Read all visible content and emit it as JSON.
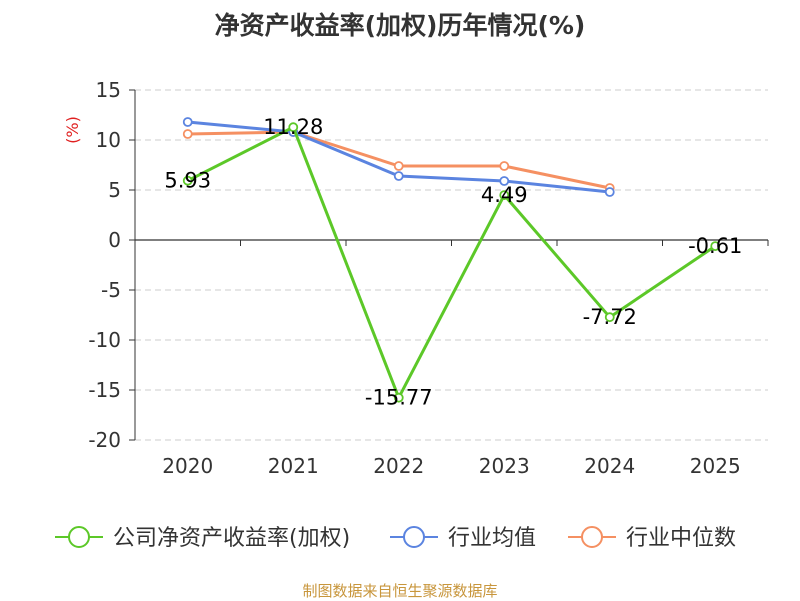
{
  "chart_data": {
    "type": "line",
    "title": "净资产收益率(加权)历年情况(%)",
    "ylabel": "(%)",
    "xlabel": "",
    "categories": [
      "2020",
      "2021",
      "2022",
      "2023",
      "2024",
      "2025"
    ],
    "ylim": [
      -20,
      15
    ],
    "yticks": [
      15,
      10,
      5,
      0,
      -5,
      -10,
      -15,
      -20
    ],
    "grid": true,
    "legend_position": "bottom",
    "series": [
      {
        "name": "公司净资产收益率(加权)",
        "color": "#5cc828",
        "values": [
          5.93,
          11.28,
          -15.77,
          4.49,
          -7.72,
          -0.61
        ],
        "labels": [
          "5.93",
          "11.28",
          "-15.77",
          "4.49",
          "-7.72",
          "-0.61"
        ]
      },
      {
        "name": "行业均值",
        "color": "#5b84e0",
        "values": [
          11.8,
          10.8,
          6.4,
          5.9,
          4.8,
          null
        ]
      },
      {
        "name": "行业中位数",
        "color": "#f59062",
        "values": [
          10.6,
          10.8,
          7.4,
          7.4,
          5.2,
          null
        ]
      }
    ]
  },
  "source": "制图数据来自恒生聚源数据库"
}
